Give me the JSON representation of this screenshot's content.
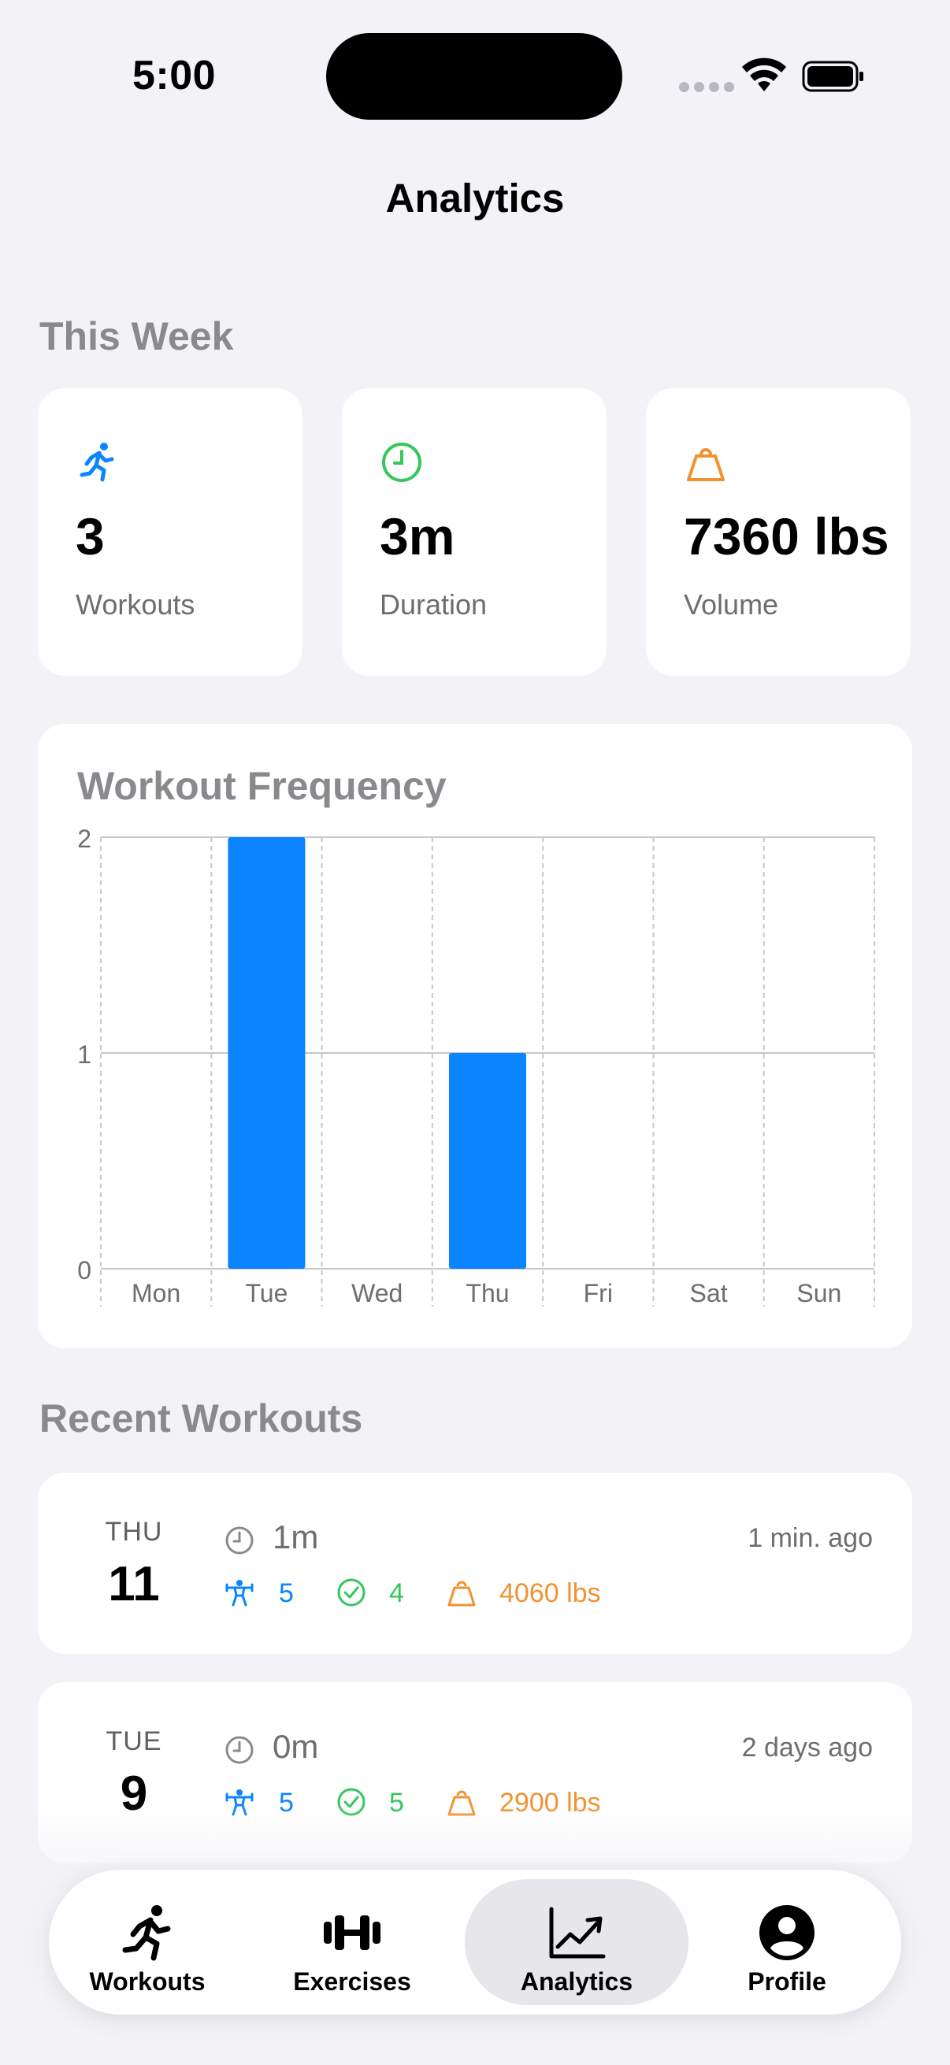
{
  "status_bar": {
    "time": "5:00"
  },
  "nav": {
    "title": "Analytics"
  },
  "this_week": {
    "title": "This Week",
    "stats": [
      {
        "icon": "running-figure-icon",
        "value": "3",
        "label": "Workouts",
        "color": "#0a84ff"
      },
      {
        "icon": "clock-icon",
        "value": "3m",
        "label": "Duration",
        "color": "#34c759"
      },
      {
        "icon": "kettlebell-weight-icon",
        "value": "7360 lbs",
        "label": "Volume",
        "color": "#f2912f"
      }
    ]
  },
  "chart_data": {
    "type": "bar",
    "title": "Workout Frequency",
    "categories": [
      "Mon",
      "Tue",
      "Wed",
      "Thu",
      "Fri",
      "Sat",
      "Sun"
    ],
    "values": [
      0,
      2,
      0,
      1,
      0,
      0,
      0
    ],
    "ylim": [
      0,
      2
    ],
    "y_ticks": [
      "0",
      "1",
      "2"
    ],
    "grid": true,
    "bar_color": "#0a84ff"
  },
  "recent": {
    "title": "Recent Workouts",
    "workouts": [
      {
        "day": "THU",
        "date": "11",
        "duration": "1m",
        "ago": "1 min. ago",
        "exercises": "5",
        "completed": "4",
        "volume": "4060 lbs"
      },
      {
        "day": "TUE",
        "date": "9",
        "duration": "0m",
        "ago": "2 days ago",
        "exercises": "5",
        "completed": "5",
        "volume": "2900 lbs"
      }
    ]
  },
  "tabbar": {
    "tabs": [
      {
        "label": "Workouts",
        "icon": "running-figure-icon",
        "active": false
      },
      {
        "label": "Exercises",
        "icon": "dumbbell-icon",
        "active": false
      },
      {
        "label": "Analytics",
        "icon": "line-chart-icon",
        "active": true
      },
      {
        "label": "Profile",
        "icon": "person-circle-icon",
        "active": false
      }
    ]
  }
}
